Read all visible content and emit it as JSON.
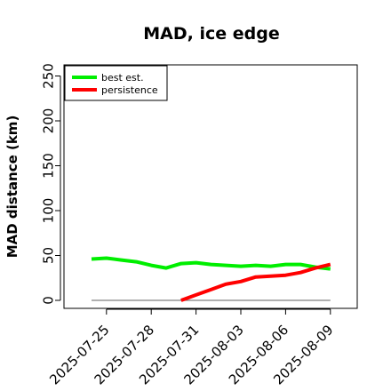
{
  "chart_data": {
    "type": "line",
    "title": "MAD, ice edge",
    "xlabel": "",
    "ylabel": "MAD distance (km)",
    "ylim": [
      0,
      260
    ],
    "x": [
      "2025-07-24",
      "2025-07-25",
      "2025-07-26",
      "2025-07-27",
      "2025-07-28",
      "2025-07-29",
      "2025-07-30",
      "2025-07-31",
      "2025-08-01",
      "2025-08-02",
      "2025-08-03",
      "2025-08-04",
      "2025-08-05",
      "2025-08-06",
      "2025-08-07",
      "2025-08-08",
      "2025-08-09"
    ],
    "x_ticks": [
      "2025-07-25",
      "2025-07-28",
      "2025-07-31",
      "2025-08-03",
      "2025-08-06",
      "2025-08-09"
    ],
    "y_ticks": [
      0,
      50,
      100,
      150,
      200,
      250
    ],
    "series": [
      {
        "name": "best est.",
        "color": "#00ee00",
        "values": [
          46,
          47,
          45,
          43,
          39,
          36,
          41,
          42,
          40,
          39,
          38,
          39,
          38,
          40,
          40,
          37,
          35
        ]
      },
      {
        "name": "persistence",
        "color": "#ff0000",
        "values": [
          null,
          null,
          null,
          null,
          null,
          null,
          0,
          6,
          12,
          18,
          21,
          26,
          27,
          28,
          31,
          36,
          40
        ]
      }
    ],
    "reference_line": {
      "value": 0,
      "color": "#808080"
    },
    "legend_position": "top-left",
    "grid": false
  }
}
